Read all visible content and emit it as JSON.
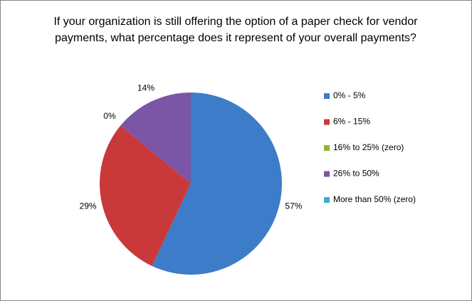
{
  "chart_data": {
    "type": "pie",
    "title": [
      "If your organization is still offering the option of a paper check for vendor",
      "payments, what percentage does it represent of your overall payments?"
    ],
    "categories": [
      "0% - 5%",
      "6% - 15%",
      "16% to 25% (zero)",
      "26% to 50%",
      "More than 50% (zero)"
    ],
    "values": [
      57,
      29,
      0,
      14,
      0
    ],
    "value_labels": [
      "57%",
      "29%",
      "0%",
      "14%",
      null
    ],
    "colors": [
      "#3d7cc9",
      "#c9393a",
      "#8db43e",
      "#7b55a6",
      "#3ab0c8"
    ],
    "legend": "right"
  }
}
